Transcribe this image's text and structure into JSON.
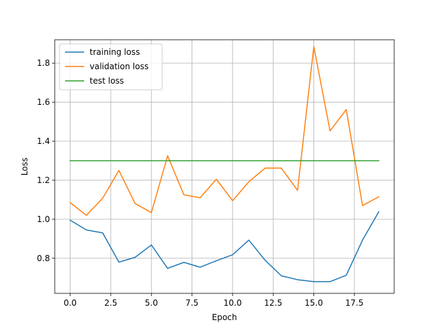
{
  "chart_data": {
    "type": "line",
    "title": "",
    "xlabel": "Epoch",
    "ylabel": "Loss",
    "xlim": [
      -0.95,
      19.95
    ],
    "ylim": [
      0.62,
      1.92
    ],
    "xticks": [
      0.0,
      2.5,
      5.0,
      7.5,
      10.0,
      12.5,
      15.0,
      17.5
    ],
    "xtick_labels": [
      "0.0",
      "2.5",
      "5.0",
      "7.5",
      "10.0",
      "12.5",
      "15.0",
      "17.5"
    ],
    "yticks": [
      0.8,
      1.0,
      1.2,
      1.4,
      1.6,
      1.8
    ],
    "ytick_labels": [
      "0.8",
      "1.0",
      "1.2",
      "1.4",
      "1.6",
      "1.8"
    ],
    "grid": true,
    "legend_position": "top-left",
    "x": [
      0,
      1,
      2,
      3,
      4,
      5,
      6,
      7,
      8,
      9,
      10,
      11,
      12,
      13,
      14,
      15,
      16,
      17,
      18,
      19
    ],
    "series": [
      {
        "name": "training loss",
        "color": "#1f77b4",
        "values": [
          0.995,
          0.945,
          0.93,
          0.78,
          0.805,
          0.868,
          0.748,
          0.779,
          0.754,
          0.787,
          0.818,
          0.893,
          0.79,
          0.71,
          0.69,
          0.68,
          0.68,
          0.713,
          0.893,
          1.038
        ]
      },
      {
        "name": "validation loss",
        "color": "#ff7f0e",
        "values": [
          1.085,
          1.02,
          1.108,
          1.25,
          1.08,
          1.034,
          1.325,
          1.125,
          1.11,
          1.205,
          1.095,
          1.192,
          1.262,
          1.262,
          1.148,
          1.885,
          1.453,
          1.562,
          1.07,
          1.115
        ]
      },
      {
        "name": "test loss",
        "color": "#2ca02c",
        "values": [
          1.3,
          1.3,
          1.3,
          1.3,
          1.3,
          1.3,
          1.3,
          1.3,
          1.3,
          1.3,
          1.3,
          1.3,
          1.3,
          1.3,
          1.3,
          1.3,
          1.3,
          1.3,
          1.3,
          1.3
        ]
      }
    ]
  }
}
